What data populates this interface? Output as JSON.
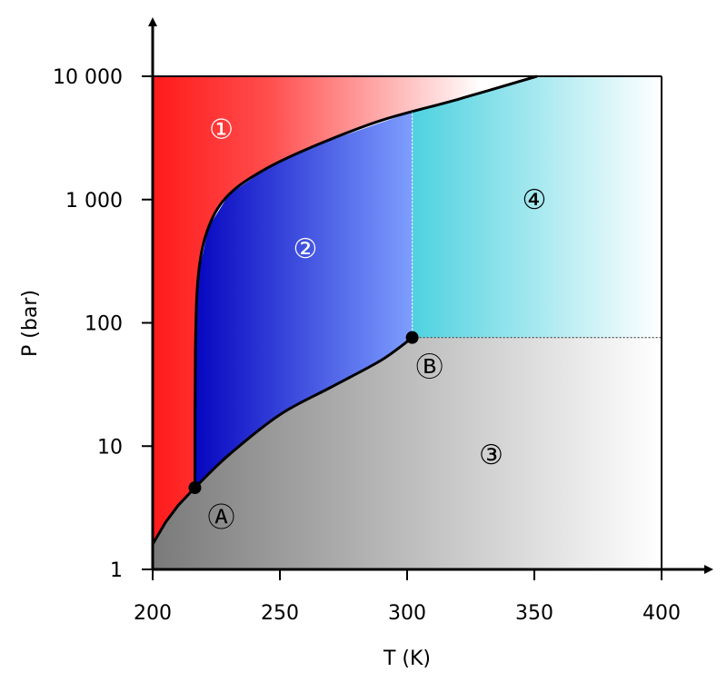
{
  "chart_data": {
    "type": "phase-diagram",
    "title": "",
    "xlabel": "T (K)",
    "ylabel": "P (bar)",
    "xlim": [
      200,
      400
    ],
    "ylim": [
      1,
      10000
    ],
    "yscale": "log",
    "xticks": [
      {
        "value": 200,
        "label": "200"
      },
      {
        "value": 250,
        "label": "250"
      },
      {
        "value": 300,
        "label": "300"
      },
      {
        "value": 350,
        "label": "350"
      },
      {
        "value": 400,
        "label": "400"
      }
    ],
    "yticks": [
      {
        "value": 1,
        "label": "1"
      },
      {
        "value": 10,
        "label": "10"
      },
      {
        "value": 100,
        "label": "100"
      },
      {
        "value": 1000,
        "label": "1 000"
      },
      {
        "value": 10000,
        "label": "10 000"
      }
    ],
    "points": [
      {
        "name": "A",
        "label": "Ⓐ",
        "T": 216.6,
        "P": 4.6
      },
      {
        "name": "B",
        "label": "Ⓑ",
        "T": 302,
        "P": 76
      }
    ],
    "curves": {
      "sublimation": [
        [
          200,
          1.6
        ],
        [
          205,
          2.4
        ],
        [
          210,
          3.3
        ],
        [
          216.6,
          4.6
        ]
      ],
      "vaporization": [
        [
          216.6,
          4.6
        ],
        [
          230,
          8.5
        ],
        [
          250,
          18
        ],
        [
          270,
          30
        ],
        [
          290,
          50
        ],
        [
          302,
          76
        ]
      ],
      "melting": [
        [
          216.6,
          4.6
        ],
        [
          216.8,
          60
        ],
        [
          218,
          250
        ],
        [
          222,
          600
        ],
        [
          230,
          1100
        ],
        [
          245,
          1800
        ],
        [
          265,
          2800
        ],
        [
          290,
          4400
        ],
        [
          320,
          6500
        ],
        [
          351,
          10000
        ]
      ]
    },
    "boundaries": {
      "critical_isotherm_T": 302,
      "critical_isobar_P": 76
    },
    "regions": [
      {
        "id": "1",
        "label": "①",
        "T": 227,
        "P": 3700,
        "text_color": "#ffffff",
        "color": "#ff1a1a"
      },
      {
        "id": "2",
        "label": "②",
        "T": 260,
        "P": 400,
        "text_color": "#ffffff",
        "color": "#0a0ac8"
      },
      {
        "id": "3",
        "label": "③",
        "T": 333,
        "P": 8.5,
        "text_color": "#000000",
        "color": "#8a8a8a"
      },
      {
        "id": "4",
        "label": "④",
        "T": 350,
        "P": 1000,
        "text_color": "#000000",
        "color": "#4fd2e0"
      }
    ],
    "grid": false,
    "legend": "none"
  }
}
